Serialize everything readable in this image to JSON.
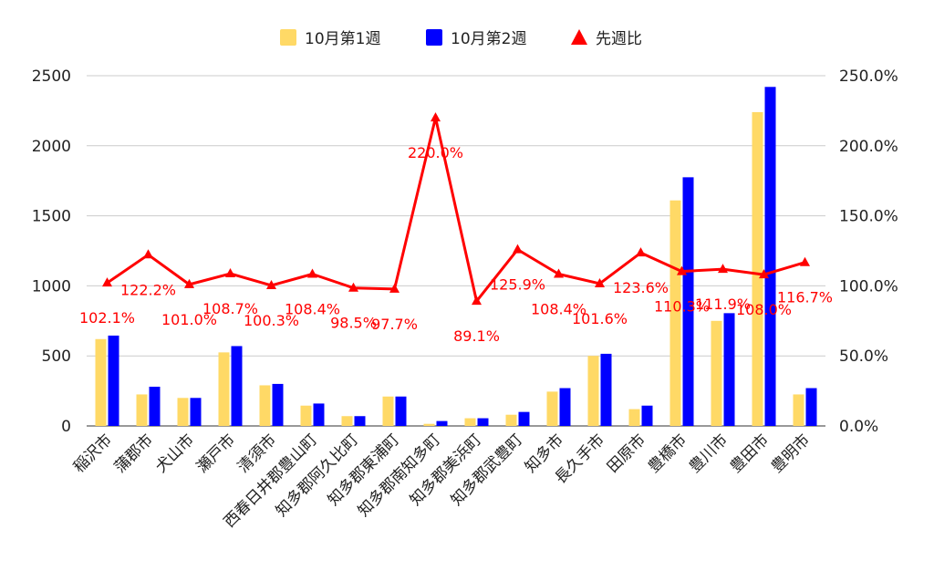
{
  "chart_data": {
    "type": "bar",
    "title": "",
    "categories": [
      "稲沢市",
      "蒲郡市",
      "犬山市",
      "瀬戸市",
      "清須市",
      "西春日井郡豊山町",
      "知多郡阿久比町",
      "知多郡東浦町",
      "知多郡南知多町",
      "知多郡美浜町",
      "知多郡武豊町",
      "知多市",
      "長久手市",
      "田原市",
      "豊橋市",
      "豊川市",
      "豊田市",
      "豊明市"
    ],
    "series": [
      {
        "name": "10月第1週",
        "type": "bar",
        "axis": "left",
        "color": "#FFD966",
        "values": [
          620,
          225,
          200,
          525,
          290,
          145,
          70,
          210,
          15,
          55,
          80,
          245,
          500,
          120,
          1610,
          750,
          2240,
          225
        ]
      },
      {
        "name": "10月第2週",
        "type": "bar",
        "axis": "left",
        "color": "#0000FF",
        "values": [
          645,
          280,
          200,
          570,
          300,
          160,
          70,
          210,
          35,
          55,
          100,
          270,
          515,
          145,
          1775,
          805,
          2420,
          270
        ]
      },
      {
        "name": "先週比",
        "type": "line",
        "axis": "right",
        "color": "#FF0000",
        "values": [
          102.1,
          122.2,
          101.0,
          108.7,
          100.3,
          108.4,
          98.5,
          97.7,
          220.0,
          89.1,
          125.9,
          108.4,
          101.6,
          123.6,
          110.3,
          111.9,
          108.0,
          116.7
        ],
        "labels": [
          "102.1%",
          "122.2%",
          "101.0%",
          "108.7%",
          "100.3%",
          "108.4%",
          "98.5%",
          "97.7%",
          "220.0%",
          "89.1%",
          "125.9%",
          "108.4%",
          "101.6%",
          "123.6%",
          "110.3%",
          "111.9%",
          "108.0%",
          "116.7%"
        ]
      }
    ],
    "y_left": {
      "min": 0,
      "max": 2500,
      "ticks": [
        "0",
        "500",
        "1000",
        "1500",
        "2000",
        "2500"
      ]
    },
    "y_right": {
      "min": 0,
      "max": 250,
      "ticks": [
        "0.0%",
        "50.0%",
        "100.0%",
        "150.0%",
        "200.0%",
        "250.0%"
      ]
    },
    "grid": true,
    "legend_position": "top-center"
  }
}
